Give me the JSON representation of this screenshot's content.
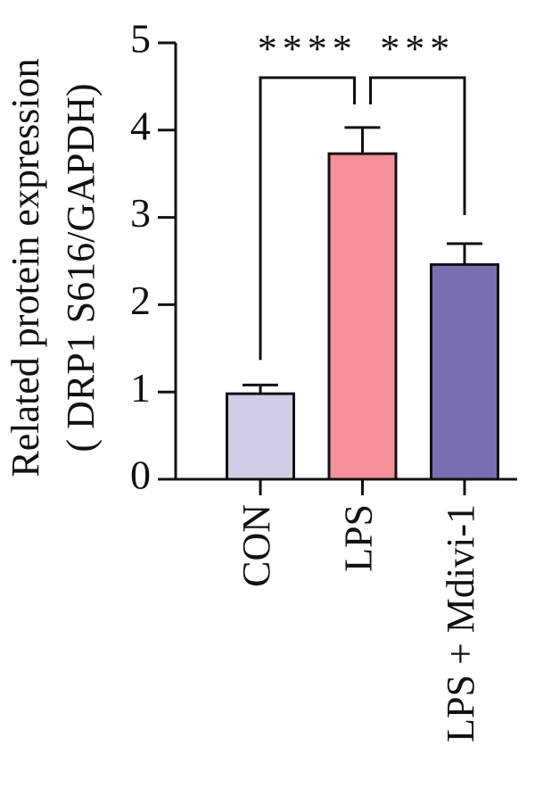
{
  "chart_data": {
    "type": "bar",
    "categories": [
      "CON",
      "LPS",
      "LPS + Mdivi-1"
    ],
    "values": [
      0.98,
      3.73,
      2.46
    ],
    "errors": [
      0.1,
      0.3,
      0.24
    ],
    "colors": [
      "#cfcde6",
      "#f4909c",
      "#7670b0"
    ],
    "ylabel": [
      "Related protein expression",
      "( DRP1 S616/GAPDH)"
    ],
    "ylim": [
      0,
      5
    ],
    "yticks": [
      0,
      1,
      2,
      3,
      4,
      5
    ],
    "annotations": [
      "****",
      "***"
    ]
  }
}
